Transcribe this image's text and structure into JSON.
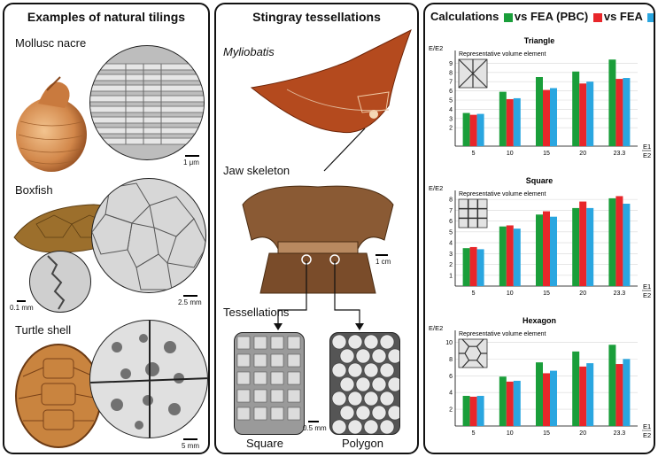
{
  "panel1": {
    "title": "Examples of natural tilings",
    "mollusc_label": "Mollusc nacre",
    "mollusc_scale": "1 μm",
    "boxfish_label": "Boxfish",
    "boxfish_scale_left": "0.1 mm",
    "boxfish_scale_right": "2.5 mm",
    "turtle_label": "Turtle shell",
    "turtle_scale": "5 mm"
  },
  "panel2": {
    "title": "Stingray tessellations",
    "species": "Myliobatis",
    "jaw_label": "Jaw skeleton",
    "jaw_scale": "1 cm",
    "tess_label": "Tessellations",
    "tess_scale": "0.5 mm",
    "square_label": "Square",
    "polygon_label": "Polygon"
  },
  "panel3": {
    "title": "Calculations",
    "legend": [
      {
        "label": "vs FEA (PBC)",
        "color": "#1a9e3a"
      },
      {
        "label": "vs FEA",
        "color": "#e8262a"
      },
      {
        "label": "",
        "color": "#2aa6e0"
      }
    ],
    "ylabel": "E/E2",
    "xlabel_top": "E1",
    "xlabel_bottom": "E2",
    "rve_label": "Representative volume element"
  },
  "chart_data": [
    {
      "type": "bar",
      "title": "Triangle",
      "categories": [
        "5",
        "10",
        "15",
        "20",
        "23.3"
      ],
      "ylim": [
        0,
        10
      ],
      "yticks": [
        2,
        3,
        4,
        5,
        6,
        7,
        8,
        9
      ],
      "series": [
        {
          "name": "vs FEA (PBC)",
          "values": [
            3.6,
            5.9,
            7.5,
            8.1,
            9.4
          ]
        },
        {
          "name": "vs FEA",
          "values": [
            3.4,
            5.1,
            6.1,
            6.8,
            7.3
          ]
        },
        {
          "values": [
            3.5,
            5.2,
            6.3,
            7.0,
            7.4
          ]
        }
      ]
    },
    {
      "type": "bar",
      "title": "Square",
      "categories": [
        "5",
        "10",
        "15",
        "20",
        "23.3"
      ],
      "ylim": [
        0,
        8.5
      ],
      "yticks": [
        1,
        2,
        3,
        4,
        5,
        6,
        7,
        8
      ],
      "series": [
        {
          "name": "vs FEA (PBC)",
          "values": [
            3.5,
            5.5,
            6.6,
            7.2,
            8.1
          ]
        },
        {
          "name": "vs FEA",
          "values": [
            3.6,
            5.6,
            6.9,
            7.8,
            8.3
          ]
        },
        {
          "values": [
            3.4,
            5.3,
            6.4,
            7.2,
            7.6
          ]
        }
      ]
    },
    {
      "type": "bar",
      "title": "Hexagon",
      "categories": [
        "5",
        "10",
        "15",
        "20",
        "23.3"
      ],
      "ylim": [
        0,
        11
      ],
      "yticks": [
        2,
        4,
        6,
        8,
        10
      ],
      "series": [
        {
          "name": "vs FEA (PBC)",
          "values": [
            3.6,
            5.9,
            7.6,
            8.9,
            9.7
          ]
        },
        {
          "name": "vs FEA",
          "values": [
            3.5,
            5.3,
            6.3,
            7.1,
            7.4
          ]
        },
        {
          "values": [
            3.6,
            5.4,
            6.6,
            7.5,
            8.0
          ]
        }
      ]
    }
  ]
}
